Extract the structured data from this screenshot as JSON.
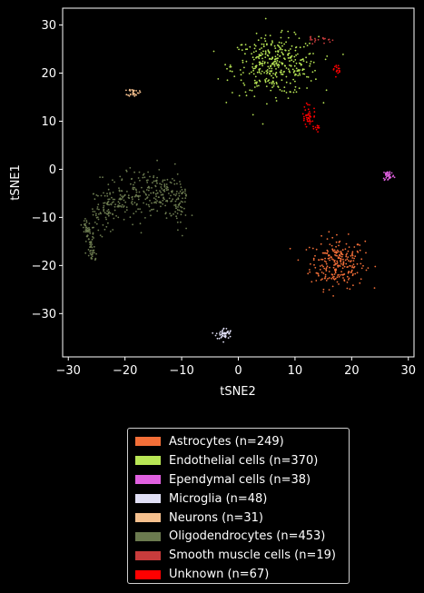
{
  "chart_data": {
    "type": "scatter",
    "xlabel": "tSNE2",
    "ylabel": "tSNE1",
    "xlim": [
      -31,
      31
    ],
    "ylim": [
      -39,
      33.5
    ],
    "xticks": [
      -30,
      -20,
      -10,
      0,
      10,
      20,
      30
    ],
    "yticks": [
      -30,
      -20,
      -10,
      0,
      10,
      20,
      30
    ],
    "xtick_labels": [
      "−30",
      "−20",
      "−10",
      "0",
      "10",
      "20",
      "30"
    ],
    "ytick_labels": [
      "−30",
      "−20",
      "−10",
      "0",
      "10",
      "20",
      "30"
    ],
    "grid": false,
    "legend_position": "below plot",
    "series": [
      {
        "name": "Astrocytes (n=249)",
        "color": "#f36f38",
        "n": 249,
        "clusters": [
          {
            "cx": 17.5,
            "cy": -19.5,
            "sx": 2.4,
            "sy": 2.6
          }
        ]
      },
      {
        "name": "Endothelial cells (n=370)",
        "color": "#b8e655",
        "n": 370,
        "clusters": [
          {
            "cx": 6.5,
            "cy": 21.5,
            "sx": 3.8,
            "sy": 3.0
          }
        ]
      },
      {
        "name": "Ependymal cells (n=38)",
        "color": "#e060e0",
        "n": 38,
        "clusters": [
          {
            "cx": 26.5,
            "cy": -1.3,
            "sx": 0.5,
            "sy": 0.6
          }
        ]
      },
      {
        "name": "Microglia (n=48)",
        "color": "#e0dff5",
        "n": 48,
        "clusters": [
          {
            "cx": -2.5,
            "cy": -34.2,
            "sx": 0.7,
            "sy": 0.6
          }
        ]
      },
      {
        "name": "Neurons (n=31)",
        "color": "#f5c08e",
        "n": 31,
        "clusters": [
          {
            "cx": -18.5,
            "cy": 16.0,
            "sx": 0.5,
            "sy": 0.4
          }
        ]
      },
      {
        "name": "Oligodendrocytes (n=453)",
        "color": "#6b7a4f",
        "n": 453,
        "clusters": [
          {
            "shape": "arc"
          }
        ]
      },
      {
        "name": "Smooth muscle cells (n=19)",
        "color": "#c83c3c",
        "n": 19,
        "clusters": [
          {
            "cx": 14.5,
            "cy": 27.0,
            "sx": 1.2,
            "sy": 0.3
          }
        ]
      },
      {
        "name": "Unknown (n=67)",
        "color": "#ff0000",
        "n": 67,
        "clusters": [
          {
            "cx": 12.5,
            "cy": 11.0,
            "sx": 0.6,
            "sy": 1.3,
            "w": 0.6
          },
          {
            "cx": 17.5,
            "cy": 20.5,
            "sx": 0.3,
            "sy": 0.5,
            "w": 0.25
          },
          {
            "cx": 13.8,
            "cy": 8.5,
            "sx": 0.3,
            "sy": 0.3,
            "w": 0.15
          }
        ]
      }
    ]
  }
}
